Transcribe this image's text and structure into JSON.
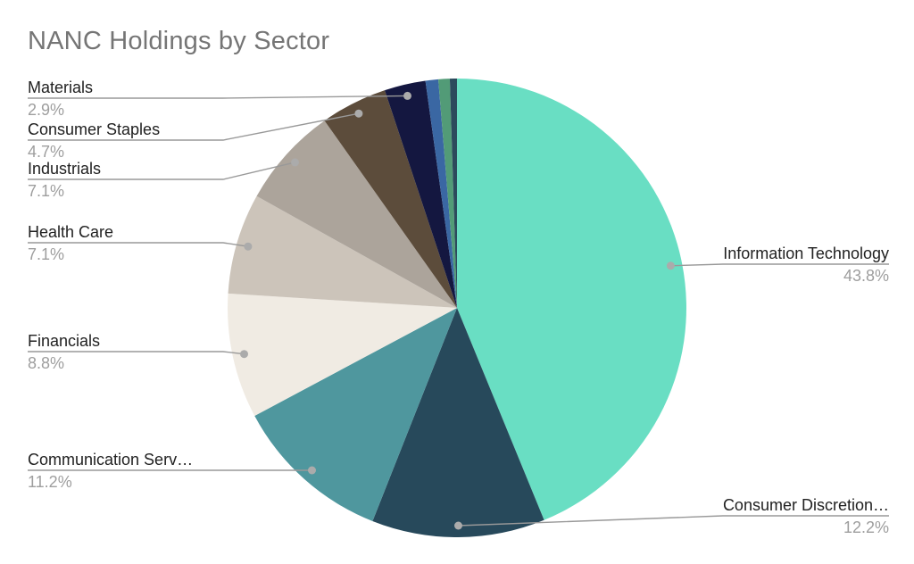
{
  "title": "NANC Holdings by Sector",
  "styles": {
    "background": "#FFFFFF",
    "title_color": "#757575",
    "label_color": "#212121",
    "pct_color": "#9E9E9E",
    "leader_line_color": "#999999",
    "leader_dot_color": "#ABABAB"
  },
  "chart_data": {
    "type": "pie",
    "title": "NANC Holdings by Sector",
    "unit": "%",
    "start_angle_deg": 0,
    "direction": "clockwise",
    "legend": "outside-labels-with-leader-lines",
    "slices": [
      {
        "label": "Information Technology",
        "pct_label": "43.8%",
        "value": 43.8,
        "color": "#69DEC3"
      },
      {
        "label": "Consumer Discretion…",
        "pct_label": "12.2%",
        "value": 12.2,
        "color": "#27495B"
      },
      {
        "label": "Communication Serv…",
        "pct_label": "11.2%",
        "value": 11.2,
        "color": "#4F979E"
      },
      {
        "label": "Financials",
        "pct_label": "8.8%",
        "value": 8.8,
        "color": "#F0EBE3"
      },
      {
        "label": "Health Care",
        "pct_label": "7.1%",
        "value": 7.1,
        "color": "#CCC4BA"
      },
      {
        "label": "Industrials",
        "pct_label": "7.1%",
        "value": 7.1,
        "color": "#ACA49B"
      },
      {
        "label": "Consumer Staples",
        "pct_label": "4.7%",
        "value": 4.7,
        "color": "#5C4C3B"
      },
      {
        "label": "Materials",
        "pct_label": "2.9%",
        "value": 2.9,
        "color": "#141740"
      },
      {
        "label": "",
        "pct_label": "",
        "value": 0.9,
        "color": "#3A67A3"
      },
      {
        "label": "",
        "pct_label": "",
        "value": 0.8,
        "color": "#529B77"
      },
      {
        "label": "",
        "pct_label": "",
        "value": 0.5,
        "color": "#2C4A5C"
      }
    ]
  }
}
